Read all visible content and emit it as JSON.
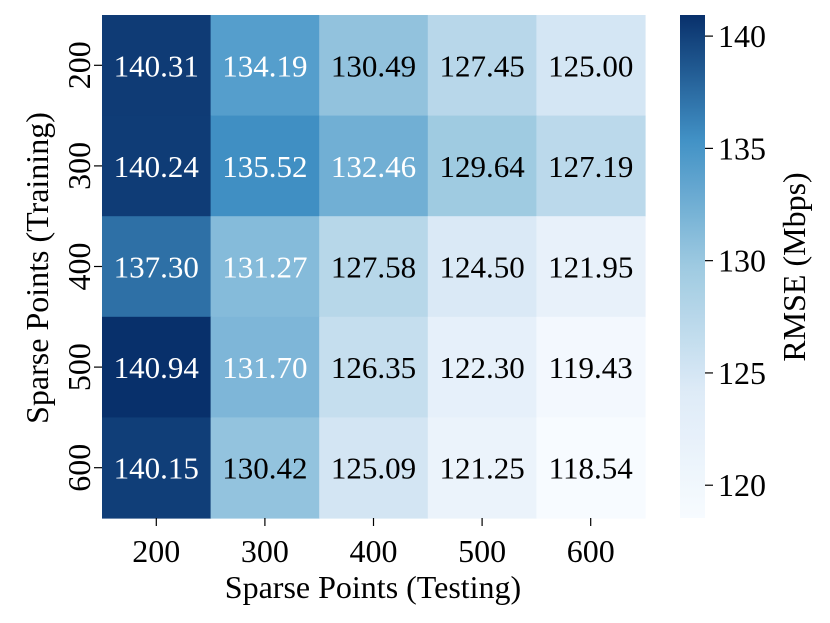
{
  "chart_data": {
    "type": "heatmap",
    "xlabel": "Sparse Points (Testing)",
    "ylabel": "Sparse Points (Training)",
    "x_categories": [
      "200",
      "300",
      "400",
      "500",
      "600"
    ],
    "y_categories": [
      "200",
      "300",
      "400",
      "500",
      "600"
    ],
    "values": [
      [
        140.31,
        134.19,
        130.49,
        127.45,
        125.0
      ],
      [
        140.24,
        135.52,
        132.46,
        129.64,
        127.19
      ],
      [
        137.3,
        131.27,
        127.58,
        124.5,
        121.95
      ],
      [
        140.94,
        131.7,
        126.35,
        122.3,
        119.43
      ],
      [
        140.15,
        130.42,
        125.09,
        121.25,
        118.54
      ]
    ],
    "colorbar": {
      "label": "RMSE (Mbps)",
      "ticks": [
        120,
        125,
        130,
        135,
        140
      ],
      "range": [
        118.54,
        140.94
      ]
    },
    "colormap": "Blues",
    "colors": [
      "#f7fbff",
      "#deebf7",
      "#9ecae1",
      "#4292c6",
      "#08306b"
    ],
    "text_colors": {
      "dark": "#000000",
      "light": "#ffffff"
    }
  }
}
